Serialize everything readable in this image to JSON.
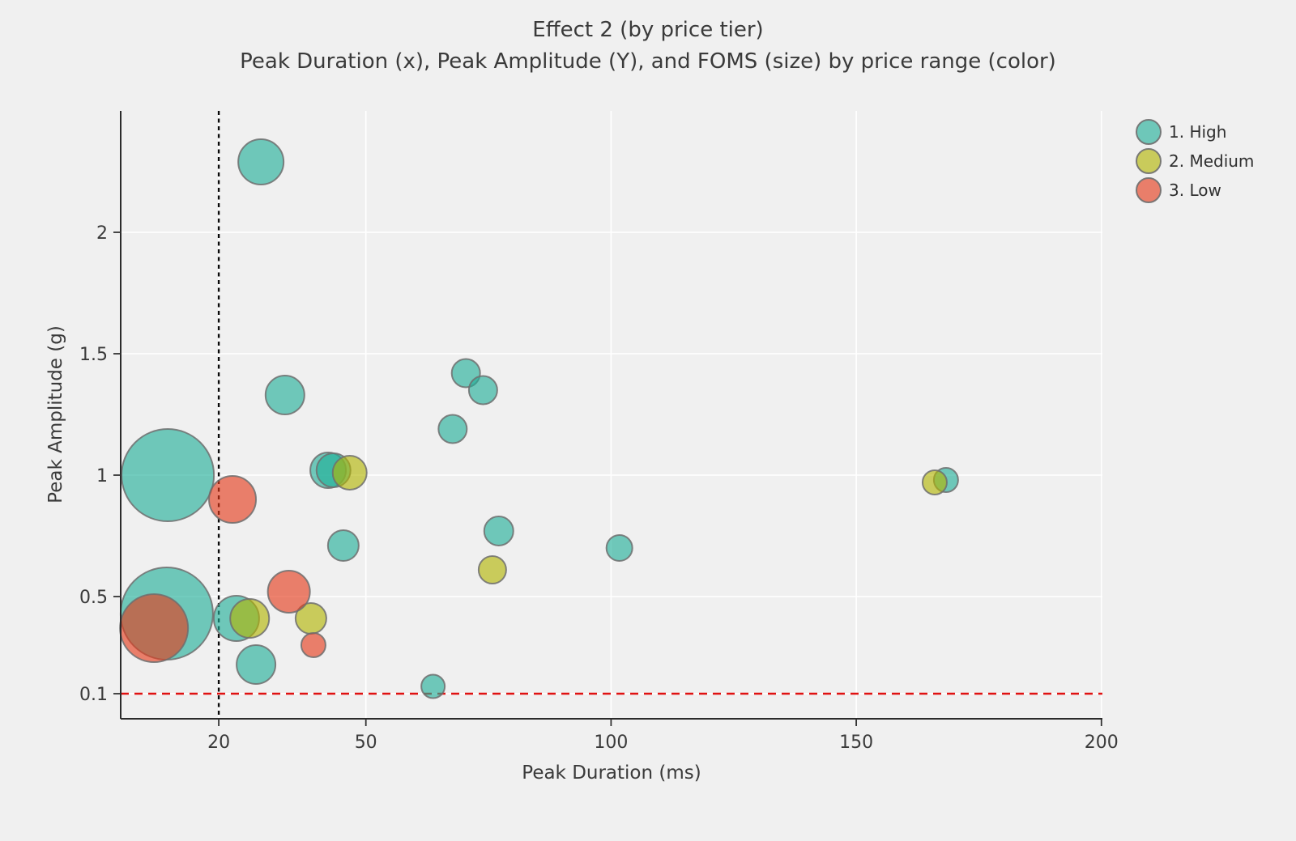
{
  "title": {
    "line1": "Effect 2 (by price tier)",
    "line2": "Peak Duration (x), Peak Amplitude (Y), and FOMS (size) by price range (color)"
  },
  "chart_data": {
    "type": "scatter",
    "subtype": "bubble",
    "title": "Effect 2 (by price tier)",
    "subtitle": "Peak Duration (x), Peak Amplitude (Y), and FOMS (size) by price range (color)",
    "xlabel": "Peak Duration (ms)",
    "ylabel": "Peak Amplitude (g)",
    "xlim": [
      0,
      200.2
    ],
    "ylim": [
      0,
      2.5
    ],
    "x_ticks": [
      20,
      50,
      100,
      150,
      200
    ],
    "y_ticks": [
      0.1,
      0.5,
      1,
      1.5,
      2
    ],
    "grid": true,
    "grid_color": "#ffffff",
    "background_color": "#f0f0f0",
    "legend_position": "top-right",
    "marker_stroke_color": "#6f6f6f",
    "marker_fill_opacity": 0.62,
    "size_legend_note": "bubble size encodes FOMS; r is rendered radius in px",
    "reference_lines": [
      {
        "orientation": "vertical",
        "value": 20,
        "color": "#0a0a0a",
        "style": "dashed"
      },
      {
        "orientation": "horizontal",
        "value": 0.1,
        "color": "#e01212",
        "style": "dashed"
      }
    ],
    "series": [
      {
        "name": "1. High",
        "color": "#1fae98",
        "points": [
          {
            "x": 28.6,
            "y": 2.29,
            "r": 28
          },
          {
            "x": 33.5,
            "y": 1.33,
            "r": 24
          },
          {
            "x": 9.6,
            "y": 1.0,
            "r": 57
          },
          {
            "x": 42.3,
            "y": 1.02,
            "r": 22
          },
          {
            "x": 43.4,
            "y": 1.02,
            "r": 21
          },
          {
            "x": 70.4,
            "y": 1.42,
            "r": 17.5
          },
          {
            "x": 73.9,
            "y": 1.35,
            "r": 17.5
          },
          {
            "x": 67.7,
            "y": 1.19,
            "r": 17.5
          },
          {
            "x": 77.1,
            "y": 0.77,
            "r": 18
          },
          {
            "x": 101.7,
            "y": 0.7,
            "r": 16
          },
          {
            "x": 45.4,
            "y": 0.71,
            "r": 19
          },
          {
            "x": 9.4,
            "y": 0.43,
            "r": 57
          },
          {
            "x": 23.6,
            "y": 0.41,
            "r": 28
          },
          {
            "x": 27.6,
            "y": 0.22,
            "r": 24
          },
          {
            "x": 63.7,
            "y": 0.13,
            "r": 14.5
          },
          {
            "x": 168.3,
            "y": 0.98,
            "r": 15
          }
        ]
      },
      {
        "name": "2. Medium",
        "color": "#b1b400",
        "points": [
          {
            "x": 46.7,
            "y": 1.01,
            "r": 21
          },
          {
            "x": 26.3,
            "y": 0.41,
            "r": 24
          },
          {
            "x": 38.8,
            "y": 0.41,
            "r": 19
          },
          {
            "x": 75.8,
            "y": 0.61,
            "r": 17
          },
          {
            "x": 166.0,
            "y": 0.97,
            "r": 15
          }
        ]
      },
      {
        "name": "3. Low",
        "color": "#e53818",
        "points": [
          {
            "x": 22.8,
            "y": 0.9,
            "r": 29
          },
          {
            "x": 6.8,
            "y": 0.37,
            "r": 42
          },
          {
            "x": 34.3,
            "y": 0.52,
            "r": 26
          },
          {
            "x": 39.3,
            "y": 0.3,
            "r": 15
          }
        ]
      }
    ]
  }
}
